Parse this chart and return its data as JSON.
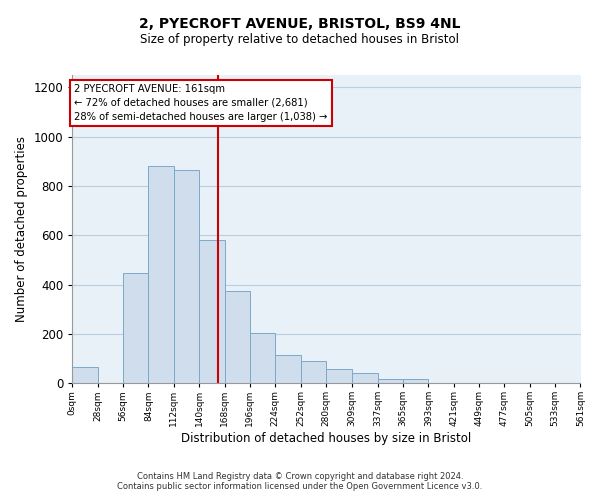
{
  "title_line1": "2, PYECROFT AVENUE, BRISTOL, BS9 4NL",
  "title_line2": "Size of property relative to detached houses in Bristol",
  "xlabel": "Distribution of detached houses by size in Bristol",
  "ylabel": "Number of detached properties",
  "bar_color": "#cfdded",
  "bar_edge_color": "#7aaac8",
  "background_color": "#ffffff",
  "plot_bg_color": "#e8f0f8",
  "grid_color": "#b8cfe0",
  "vline_x": 161,
  "vline_color": "#cc0000",
  "annotation_text": "2 PYECROFT AVENUE: 161sqm\n← 72% of detached houses are smaller (2,681)\n28% of semi-detached houses are larger (1,038) →",
  "annotation_box_color": "#ffffff",
  "annotation_box_edge_color": "#cc0000",
  "bin_edges": [
    0,
    28,
    56,
    84,
    112,
    140,
    168,
    196,
    224,
    252,
    280,
    309,
    337,
    365,
    393,
    421,
    449,
    477,
    505,
    533,
    561
  ],
  "bar_heights": [
    65,
    0,
    445,
    880,
    865,
    580,
    375,
    205,
    115,
    88,
    57,
    42,
    18,
    18,
    0,
    0,
    0,
    0,
    0,
    0
  ],
  "ylim": [
    0,
    1250
  ],
  "yticks": [
    0,
    200,
    400,
    600,
    800,
    1000,
    1200
  ],
  "footnote_line1": "Contains HM Land Registry data © Crown copyright and database right 2024.",
  "footnote_line2": "Contains public sector information licensed under the Open Government Licence v3.0."
}
